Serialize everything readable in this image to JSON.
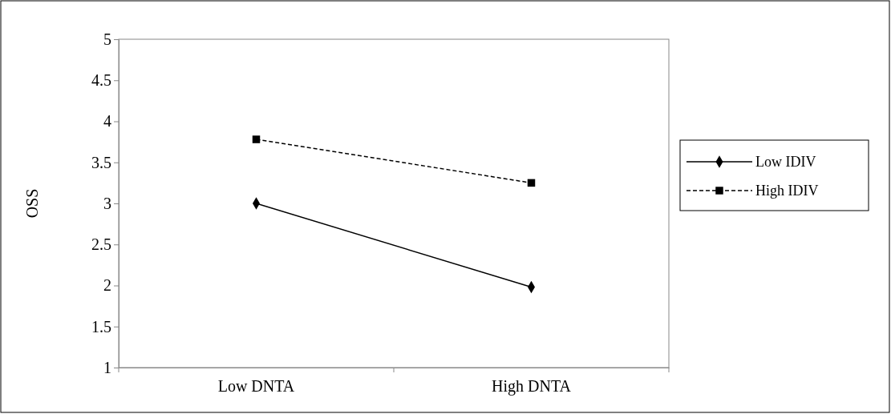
{
  "chart_data": {
    "type": "line",
    "ylabel": "OSS",
    "categories": [
      "Low DNTA",
      "High DNTA"
    ],
    "series": [
      {
        "name": "Low IDIV",
        "color": "#000000",
        "values": [
          3.0,
          1.98
        ],
        "marker": "diamond",
        "line_style": "solid"
      },
      {
        "name": "High IDIV",
        "color": "#000000",
        "values": [
          3.78,
          3.25
        ],
        "marker": "square",
        "line_style": "dashed"
      }
    ],
    "ylim": [
      1,
      5
    ],
    "yticks": [
      1,
      1.5,
      2,
      2.5,
      3,
      3.5,
      4,
      4.5,
      5
    ],
    "grid": false,
    "legend": "right"
  }
}
